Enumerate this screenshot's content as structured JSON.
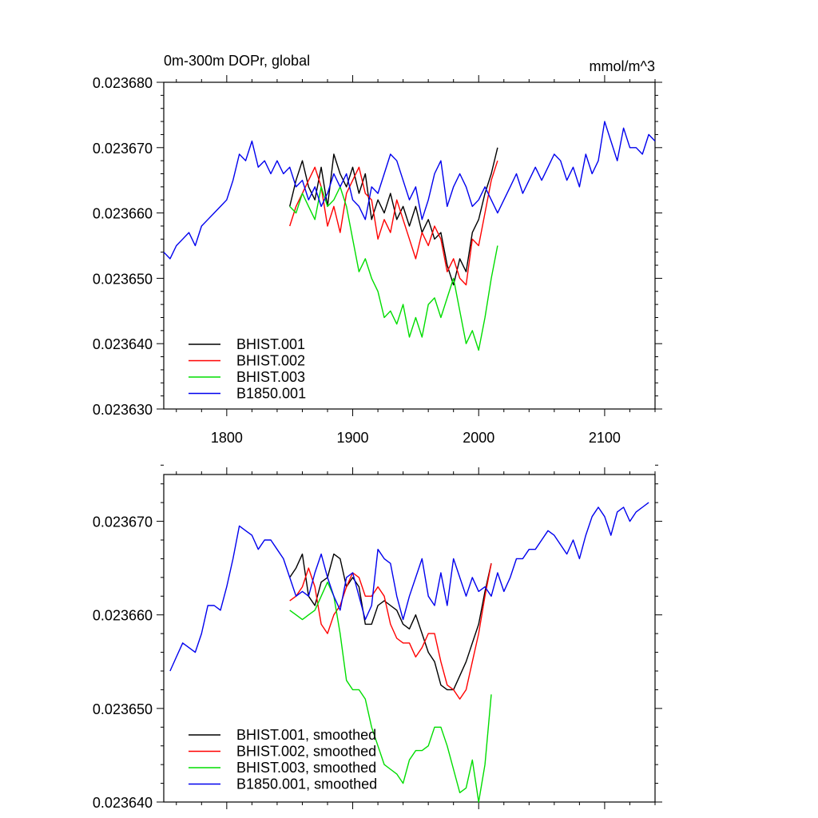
{
  "chart_data": [
    {
      "type": "line",
      "title": "0m-300m DOPr, global",
      "units": "mmol/m^3",
      "xlabel": "",
      "ylabel": "",
      "xlim": [
        1750,
        2140
      ],
      "ylim": [
        0.02363,
        0.02368
      ],
      "xticks": [
        1800,
        1900,
        2000,
        2100
      ],
      "xtick_labels": [
        "1800",
        "1900",
        "2000",
        "2100"
      ],
      "yticks": [
        0.02363,
        0.02364,
        0.02365,
        0.02366,
        0.02367,
        0.02368
      ],
      "ytick_labels": [
        "0.023630",
        "0.023640",
        "0.023650",
        "0.023660",
        "0.023670",
        "0.023680"
      ],
      "grid": false,
      "legend": "bottom-left",
      "series": [
        {
          "name": "BHIST.001",
          "color": "#000000",
          "x": [
            1850,
            1855,
            1860,
            1865,
            1870,
            1875,
            1880,
            1885,
            1890,
            1895,
            1900,
            1905,
            1910,
            1915,
            1920,
            1925,
            1930,
            1935,
            1940,
            1945,
            1950,
            1955,
            1960,
            1965,
            1970,
            1975,
            1980,
            1985,
            1990,
            1995,
            2000,
            2005,
            2010,
            2015
          ],
          "y": [
            0.023661,
            0.023665,
            0.023668,
            0.023664,
            0.023662,
            0.023667,
            0.023661,
            0.023669,
            0.023666,
            0.023664,
            0.023667,
            0.023663,
            0.023666,
            0.023659,
            0.023662,
            0.02366,
            0.023663,
            0.023659,
            0.023661,
            0.023658,
            0.023661,
            0.023657,
            0.023659,
            0.023656,
            0.023657,
            0.023652,
            0.023649,
            0.023653,
            0.023651,
            0.023657,
            0.023659,
            0.023663,
            0.023666,
            0.02367
          ]
        },
        {
          "name": "BHIST.002",
          "color": "#ff0000",
          "x": [
            1850,
            1855,
            1860,
            1865,
            1870,
            1875,
            1880,
            1885,
            1890,
            1895,
            1900,
            1905,
            1910,
            1915,
            1920,
            1925,
            1930,
            1935,
            1940,
            1945,
            1950,
            1955,
            1960,
            1965,
            1970,
            1975,
            1980,
            1985,
            1990,
            1995,
            2000,
            2005,
            2010,
            2015
          ],
          "y": [
            0.023658,
            0.023661,
            0.023663,
            0.023665,
            0.023667,
            0.023664,
            0.023658,
            0.023661,
            0.023657,
            0.023663,
            0.023665,
            0.023667,
            0.023663,
            0.023662,
            0.023656,
            0.023659,
            0.023657,
            0.023662,
            0.023659,
            0.023656,
            0.023653,
            0.023657,
            0.023655,
            0.023658,
            0.023656,
            0.023651,
            0.023653,
            0.02365,
            0.023649,
            0.023656,
            0.023655,
            0.02366,
            0.023665,
            0.023668
          ]
        },
        {
          "name": "BHIST.003",
          "color": "#00dd00",
          "x": [
            1850,
            1855,
            1860,
            1865,
            1870,
            1875,
            1880,
            1885,
            1890,
            1895,
            1900,
            1905,
            1910,
            1915,
            1920,
            1925,
            1930,
            1935,
            1940,
            1945,
            1950,
            1955,
            1960,
            1965,
            1970,
            1975,
            1980,
            1985,
            1990,
            1995,
            2000,
            2005,
            2010,
            2015
          ],
          "y": [
            0.023661,
            0.02366,
            0.023663,
            0.023661,
            0.023659,
            0.023664,
            0.023661,
            0.023662,
            0.023664,
            0.023661,
            0.023656,
            0.023651,
            0.023653,
            0.02365,
            0.023648,
            0.023644,
            0.023645,
            0.023643,
            0.023646,
            0.023641,
            0.023644,
            0.023641,
            0.023646,
            0.023647,
            0.023644,
            0.023647,
            0.02365,
            0.023645,
            0.02364,
            0.023642,
            0.023639,
            0.023644,
            0.02365,
            0.023655
          ]
        },
        {
          "name": "B1850.001",
          "color": "#0000ee",
          "x": [
            1750,
            1755,
            1760,
            1765,
            1770,
            1775,
            1780,
            1785,
            1790,
            1795,
            1800,
            1805,
            1810,
            1815,
            1820,
            1825,
            1830,
            1835,
            1840,
            1845,
            1850,
            1855,
            1860,
            1865,
            1870,
            1875,
            1880,
            1885,
            1890,
            1895,
            1900,
            1905,
            1910,
            1915,
            1920,
            1925,
            1930,
            1935,
            1940,
            1945,
            1950,
            1955,
            1960,
            1965,
            1970,
            1975,
            1980,
            1985,
            1990,
            1995,
            2000,
            2005,
            2010,
            2015,
            2020,
            2025,
            2030,
            2035,
            2040,
            2045,
            2050,
            2055,
            2060,
            2065,
            2070,
            2075,
            2080,
            2085,
            2090,
            2095,
            2100,
            2105,
            2110,
            2115,
            2120,
            2125,
            2130,
            2135,
            2140
          ],
          "y": [
            0.023654,
            0.023653,
            0.023655,
            0.023656,
            0.023657,
            0.023655,
            0.023658,
            0.023659,
            0.02366,
            0.023661,
            0.023662,
            0.023665,
            0.023669,
            0.023668,
            0.023671,
            0.023667,
            0.023668,
            0.023666,
            0.023668,
            0.023666,
            0.023667,
            0.023664,
            0.023665,
            0.023662,
            0.023664,
            0.023661,
            0.023663,
            0.023666,
            0.023664,
            0.023666,
            0.023662,
            0.023661,
            0.023659,
            0.023664,
            0.023663,
            0.023666,
            0.023669,
            0.023668,
            0.023665,
            0.023662,
            0.023664,
            0.023659,
            0.023662,
            0.023666,
            0.023668,
            0.023661,
            0.023664,
            0.023666,
            0.023664,
            0.023661,
            0.023662,
            0.023664,
            0.023662,
            0.02366,
            0.023662,
            0.023664,
            0.023666,
            0.023663,
            0.023665,
            0.023667,
            0.023665,
            0.023667,
            0.023669,
            0.023668,
            0.023665,
            0.023667,
            0.023664,
            0.023669,
            0.023666,
            0.023668,
            0.023674,
            0.023671,
            0.023668,
            0.023673,
            0.02367,
            0.02367,
            0.023669,
            0.023672,
            0.023671
          ]
        }
      ]
    },
    {
      "type": "line",
      "title": "",
      "xlabel": "",
      "ylabel": "",
      "xlim": [
        1750,
        2140
      ],
      "ylim": [
        0.02364,
        0.023675
      ],
      "xticks": [
        1800,
        1900,
        2000,
        2100
      ],
      "xtick_labels": [],
      "yticks": [
        0.02364,
        0.02365,
        0.02366,
        0.02367
      ],
      "ytick_labels": [
        "0.023640",
        "0.023650",
        "0.023660",
        "0.023670"
      ],
      "grid": false,
      "legend": "bottom-left",
      "series": [
        {
          "name": "BHIST.001, smoothed",
          "color": "#000000",
          "x": [
            1850,
            1855,
            1860,
            1865,
            1870,
            1875,
            1880,
            1885,
            1890,
            1895,
            1900,
            1905,
            1910,
            1915,
            1920,
            1925,
            1930,
            1935,
            1940,
            1945,
            1950,
            1955,
            1960,
            1965,
            1970,
            1975,
            1980,
            1985,
            1990,
            1995,
            2000,
            2005,
            2010
          ],
          "y": [
            0.023664,
            0.023665,
            0.0236665,
            0.023662,
            0.023661,
            0.0236635,
            0.023664,
            0.0236665,
            0.023666,
            0.023663,
            0.023664,
            0.023663,
            0.023659,
            0.023659,
            0.023661,
            0.0236615,
            0.023661,
            0.0236605,
            0.023659,
            0.0236585,
            0.02366,
            0.023658,
            0.023656,
            0.023655,
            0.0236525,
            0.023652,
            0.023652,
            0.0236535,
            0.023655,
            0.023657,
            0.023659,
            0.0236625,
            0.0236655
          ]
        },
        {
          "name": "BHIST.002, smoothed",
          "color": "#ff0000",
          "x": [
            1850,
            1855,
            1860,
            1865,
            1870,
            1875,
            1880,
            1885,
            1890,
            1895,
            1900,
            1905,
            1910,
            1915,
            1920,
            1925,
            1930,
            1935,
            1940,
            1945,
            1950,
            1955,
            1960,
            1965,
            1970,
            1975,
            1980,
            1985,
            1990,
            1995,
            2000,
            2005,
            2010
          ],
          "y": [
            0.0236615,
            0.023662,
            0.023663,
            0.023665,
            0.023663,
            0.023659,
            0.023658,
            0.02366,
            0.023661,
            0.023663,
            0.0236645,
            0.023664,
            0.023662,
            0.023662,
            0.023663,
            0.023662,
            0.023659,
            0.0236575,
            0.023657,
            0.023657,
            0.0236555,
            0.0236565,
            0.023658,
            0.023658,
            0.023655,
            0.0236525,
            0.023652,
            0.023651,
            0.023652,
            0.023655,
            0.023658,
            0.023662,
            0.0236655
          ]
        },
        {
          "name": "BHIST.003, smoothed",
          "color": "#00dd00",
          "x": [
            1850,
            1855,
            1860,
            1865,
            1870,
            1875,
            1880,
            1885,
            1890,
            1895,
            1900,
            1905,
            1910,
            1915,
            1920,
            1925,
            1930,
            1935,
            1940,
            1945,
            1950,
            1955,
            1960,
            1965,
            1970,
            1975,
            1980,
            1985,
            1990,
            1995,
            2000,
            2005,
            2010
          ],
          "y": [
            0.0236605,
            0.02366,
            0.0236595,
            0.02366,
            0.0236605,
            0.023662,
            0.0236635,
            0.023662,
            0.023658,
            0.023653,
            0.023652,
            0.023652,
            0.023651,
            0.023648,
            0.023646,
            0.023644,
            0.0236435,
            0.023643,
            0.023642,
            0.0236445,
            0.0236455,
            0.0236455,
            0.023646,
            0.023648,
            0.023648,
            0.023646,
            0.0236435,
            0.023641,
            0.0236415,
            0.0236445,
            0.02364,
            0.023644,
            0.0236515
          ]
        },
        {
          "name": "B1850.001, smoothed",
          "color": "#0000ee",
          "x": [
            1755,
            1760,
            1765,
            1770,
            1775,
            1780,
            1785,
            1790,
            1795,
            1800,
            1805,
            1810,
            1815,
            1820,
            1825,
            1830,
            1835,
            1840,
            1845,
            1850,
            1855,
            1860,
            1865,
            1870,
            1875,
            1880,
            1885,
            1890,
            1895,
            1900,
            1905,
            1910,
            1915,
            1920,
            1925,
            1930,
            1935,
            1940,
            1945,
            1950,
            1955,
            1960,
            1965,
            1970,
            1975,
            1980,
            1985,
            1990,
            1995,
            2000,
            2005,
            2010,
            2015,
            2020,
            2025,
            2030,
            2035,
            2040,
            2045,
            2050,
            2055,
            2060,
            2065,
            2070,
            2075,
            2080,
            2085,
            2090,
            2095,
            2100,
            2105,
            2110,
            2115,
            2120,
            2125,
            2130,
            2135
          ],
          "y": [
            0.023654,
            0.0236555,
            0.023657,
            0.0236565,
            0.023656,
            0.023658,
            0.023661,
            0.023661,
            0.0236605,
            0.023663,
            0.023666,
            0.0236695,
            0.023669,
            0.0236685,
            0.023667,
            0.023668,
            0.023668,
            0.023667,
            0.023666,
            0.023664,
            0.023662,
            0.0236625,
            0.023662,
            0.0236645,
            0.0236665,
            0.023664,
            0.023662,
            0.0236605,
            0.023664,
            0.0236645,
            0.023662,
            0.0236595,
            0.023661,
            0.023667,
            0.023666,
            0.0236655,
            0.023662,
            0.0236595,
            0.023662,
            0.023664,
            0.023666,
            0.023662,
            0.023661,
            0.0236645,
            0.023661,
            0.023666,
            0.023664,
            0.023662,
            0.023664,
            0.0236625,
            0.023663,
            0.023662,
            0.0236645,
            0.0236625,
            0.023664,
            0.023666,
            0.023666,
            0.023667,
            0.023667,
            0.023668,
            0.023669,
            0.0236685,
            0.0236675,
            0.0236665,
            0.023668,
            0.023666,
            0.0236685,
            0.0236705,
            0.0236715,
            0.0236705,
            0.0236685,
            0.023671,
            0.0236715,
            0.02367,
            0.023671,
            0.0236715,
            0.023672
          ]
        }
      ]
    }
  ]
}
